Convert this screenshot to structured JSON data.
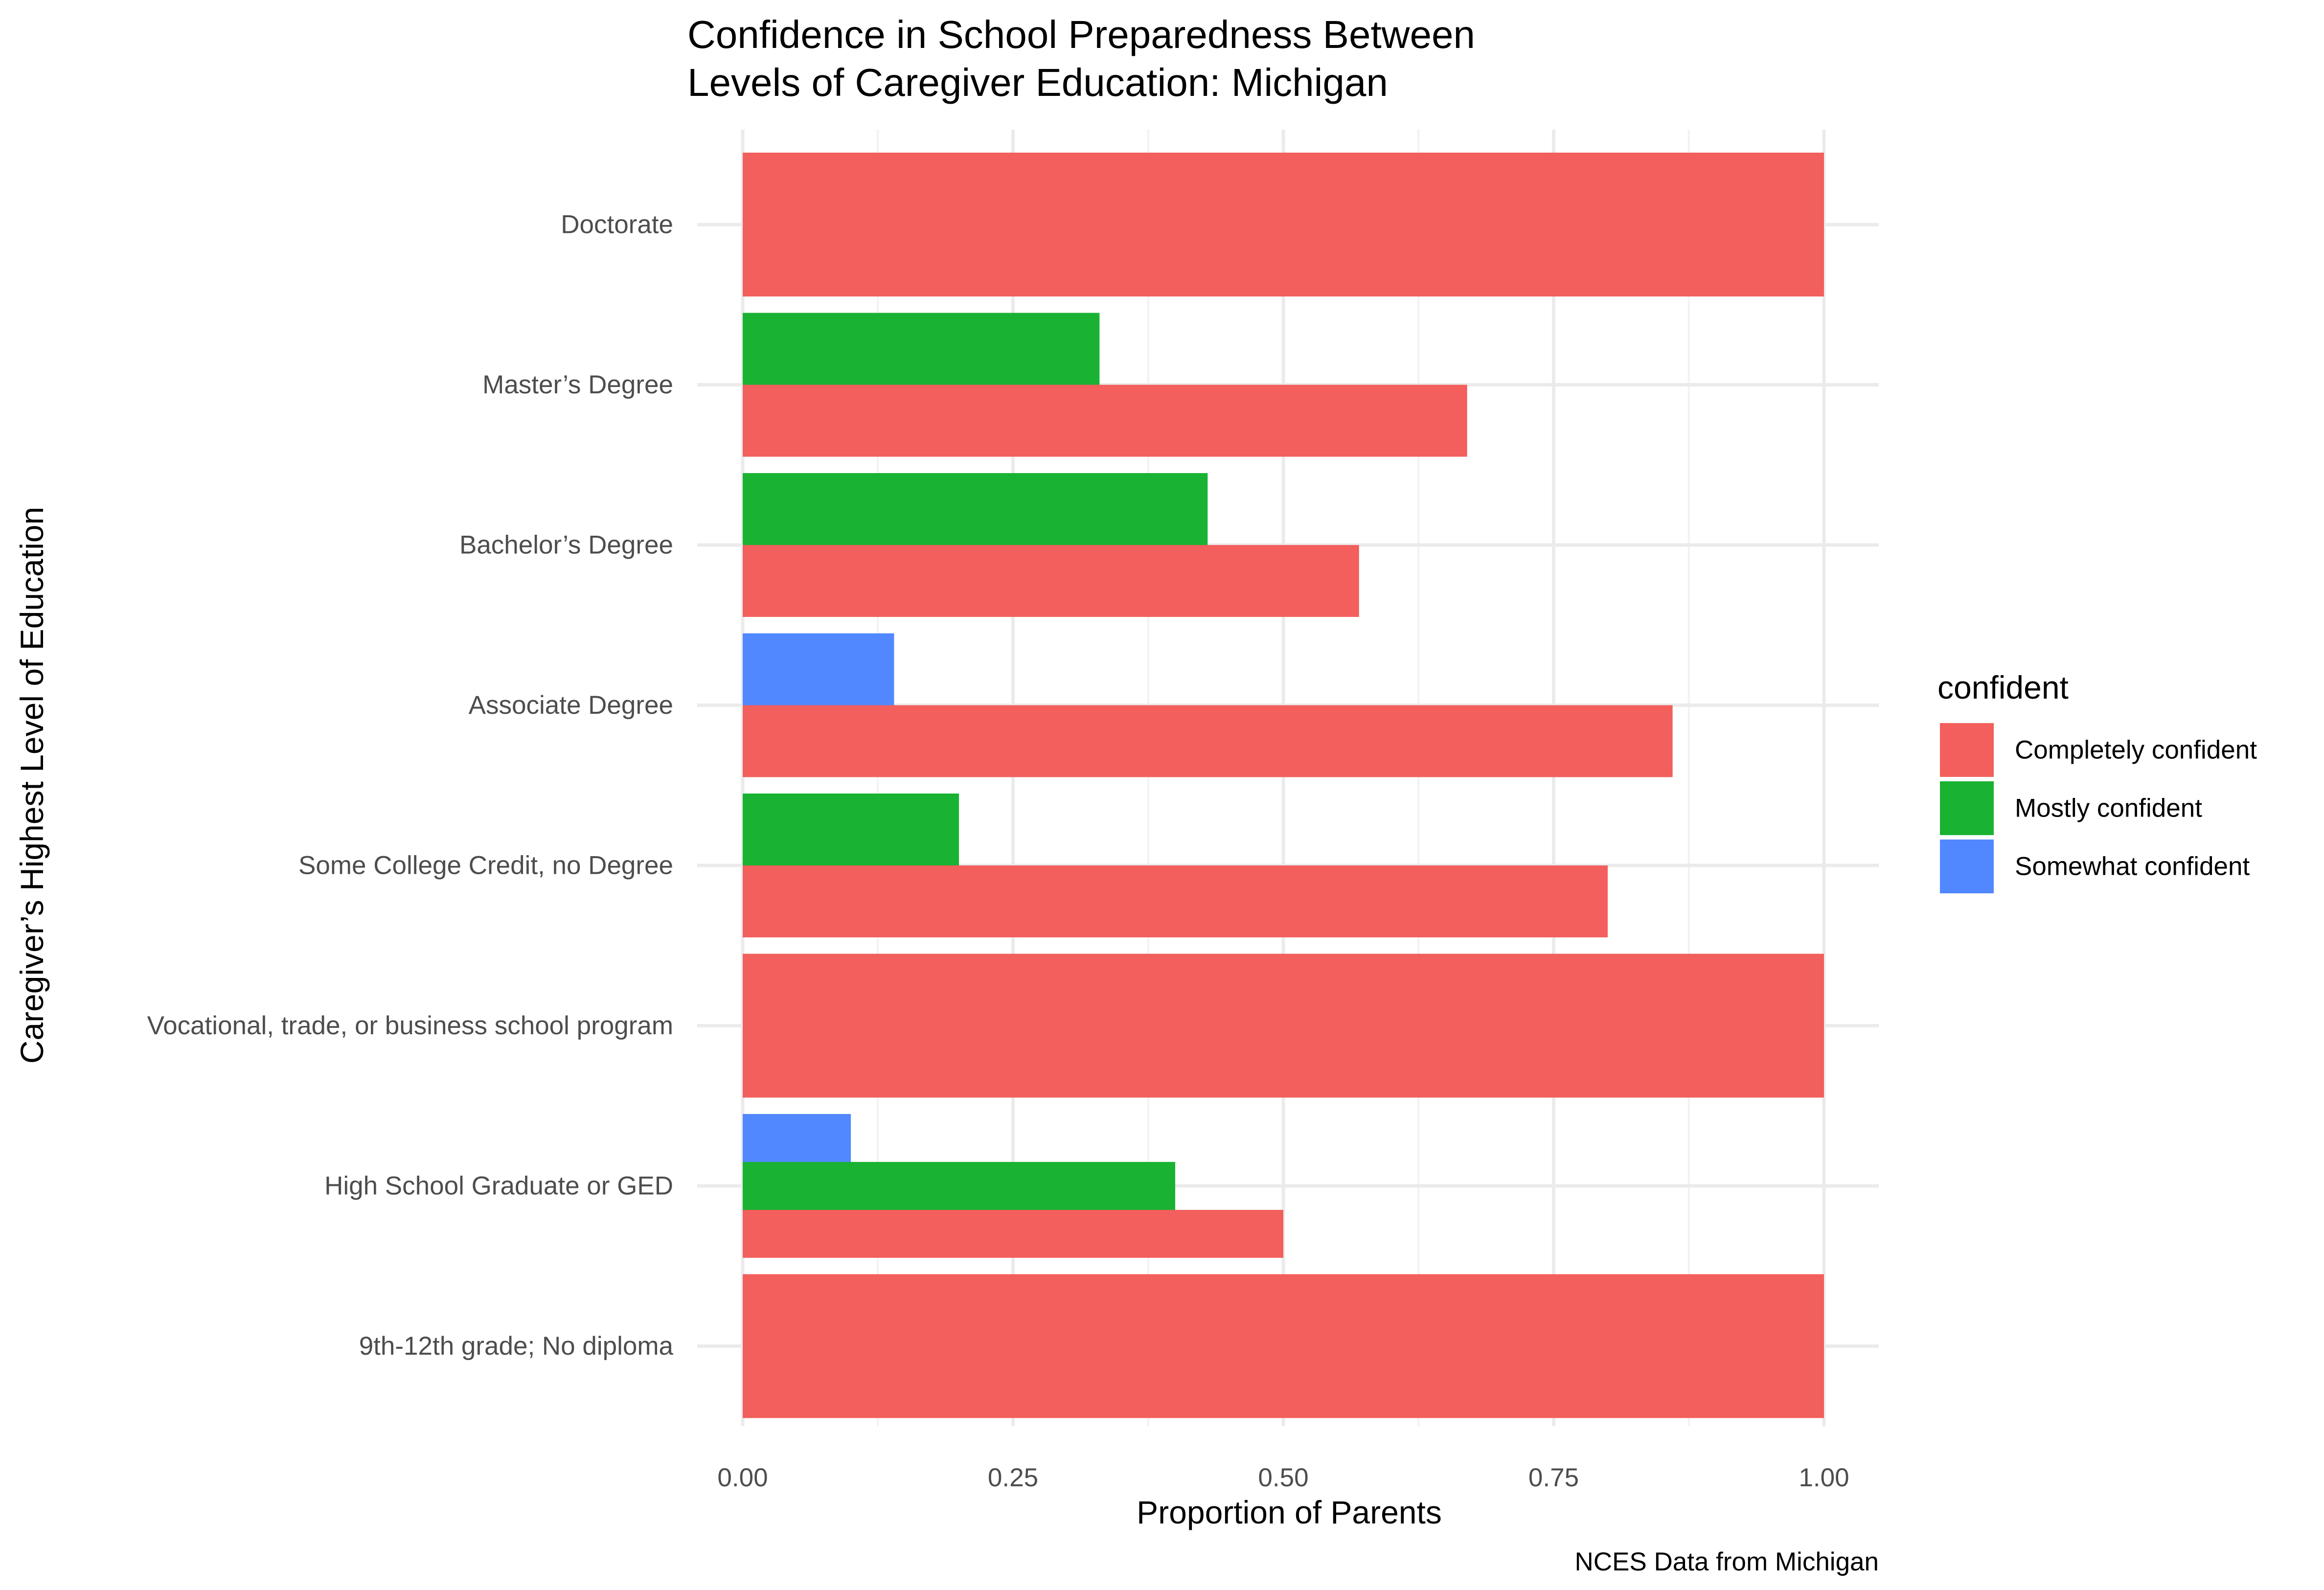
{
  "chart_data": {
    "type": "bar",
    "orientation": "horizontal",
    "position": "dodge",
    "title": [
      "Confidence in School Preparedness Between",
      "Levels of Caregiver Education: Michigan"
    ],
    "xlabel": "Proportion of Parents",
    "ylabel": "Caregiver’s Highest Level of Education",
    "caption": "NCES Data from Michigan",
    "xlim": [
      0,
      1
    ],
    "x_ticks": [
      0,
      0.25,
      0.5,
      0.75,
      1.0
    ],
    "x_tick_labels": [
      "0.00",
      "0.25",
      "0.50",
      "0.75",
      "1.00"
    ],
    "grid": true,
    "legend_position": "right",
    "legend_title": "confident",
    "categories": [
      "Doctorate",
      "Master’s Degree",
      "Bachelor’s Degree",
      "Associate Degree",
      "Some College Credit, no Degree",
      "Vocational, trade, or business school program",
      "High School Graduate or GED",
      "9th-12th grade; No diploma"
    ],
    "series": [
      {
        "name": "Completely confident",
        "color": "#F25F5C",
        "values": [
          1.0,
          0.67,
          0.57,
          0.86,
          0.8,
          1.0,
          0.5,
          1.0
        ]
      },
      {
        "name": "Mostly confident",
        "color": "#1AB233",
        "values": [
          null,
          0.33,
          0.43,
          null,
          0.2,
          null,
          0.4,
          null
        ]
      },
      {
        "name": "Somewhat confident",
        "color": "#5288FF",
        "values": [
          null,
          null,
          null,
          0.14,
          null,
          null,
          0.1,
          null
        ]
      }
    ]
  }
}
